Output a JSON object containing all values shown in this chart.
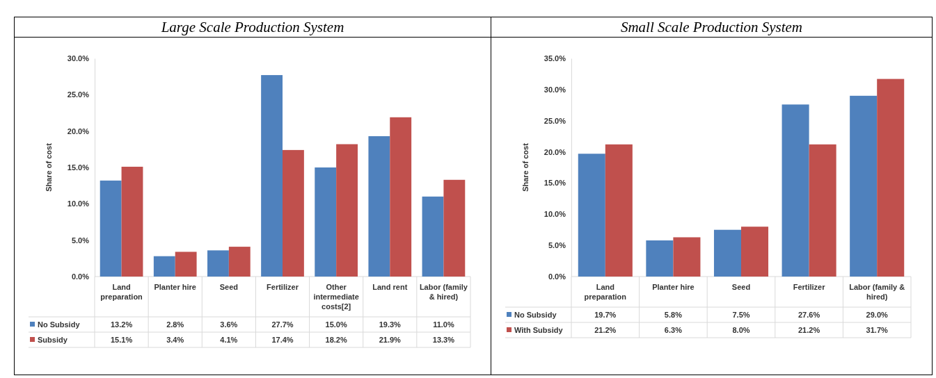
{
  "chart_data": [
    {
      "type": "bar",
      "title": "Large Scale Production System",
      "ylabel": "Share of cost",
      "categories": [
        "Land preparation",
        "Planter hire",
        "Seed",
        "Fertilizer",
        "Other intermediate costs[2]",
        "Land rent",
        "Labor (family & hired)"
      ],
      "series": [
        {
          "name": "No Subsidy",
          "color": "#4f81bd",
          "values": [
            13.2,
            2.8,
            3.6,
            27.7,
            15.0,
            19.3,
            11.0
          ],
          "value_labels": [
            "13.2%",
            "2.8%",
            "3.6%",
            "27.7%",
            "15.0%",
            "19.3%",
            "11.0%"
          ]
        },
        {
          "name": "Subsidy",
          "color": "#c0504d",
          "values": [
            15.1,
            3.4,
            4.1,
            17.4,
            18.2,
            21.9,
            13.3
          ],
          "value_labels": [
            "15.1%",
            "3.4%",
            "4.1%",
            "17.4%",
            "18.2%",
            "21.9%",
            "13.3%"
          ]
        }
      ],
      "ylim": [
        0,
        30
      ],
      "yticks": [
        {
          "value": 0,
          "label": "0.0%"
        },
        {
          "value": 5,
          "label": "5.0%"
        },
        {
          "value": 10,
          "label": "10.0%"
        },
        {
          "value": 15,
          "label": "15.0%"
        },
        {
          "value": 20,
          "label": "20.0%"
        },
        {
          "value": 25,
          "label": "25.0%"
        },
        {
          "value": 30,
          "label": "30.0%"
        }
      ],
      "legend": "bottom",
      "grid": false
    },
    {
      "type": "bar",
      "title": "Small Scale Production System",
      "ylabel": "Share of cost",
      "categories": [
        "Land preparation",
        "Planter hire",
        "Seed",
        "Fertilizer",
        "Labor (family & hired)"
      ],
      "series": [
        {
          "name": "No Subsidy",
          "color": "#4f81bd",
          "values": [
            19.7,
            5.8,
            7.5,
            27.6,
            29.0
          ],
          "value_labels": [
            "19.7%",
            "5.8%",
            "7.5%",
            "27.6%",
            "29.0%"
          ]
        },
        {
          "name": "With Subsidy",
          "color": "#c0504d",
          "values": [
            21.2,
            6.3,
            8.0,
            21.2,
            31.7
          ],
          "value_labels": [
            "21.2%",
            "6.3%",
            "8.0%",
            "21.2%",
            "31.7%"
          ]
        }
      ],
      "ylim": [
        0,
        35
      ],
      "yticks": [
        {
          "value": 0,
          "label": "0.0%"
        },
        {
          "value": 5,
          "label": "5.0%"
        },
        {
          "value": 10,
          "label": "10.0%"
        },
        {
          "value": 15,
          "label": "15.0%"
        },
        {
          "value": 20,
          "label": "20.0%"
        },
        {
          "value": 25,
          "label": "25.0%"
        },
        {
          "value": 30,
          "label": "30.0%"
        },
        {
          "value": 35,
          "label": "35.0%"
        }
      ],
      "legend": "bottom",
      "grid": false
    }
  ]
}
